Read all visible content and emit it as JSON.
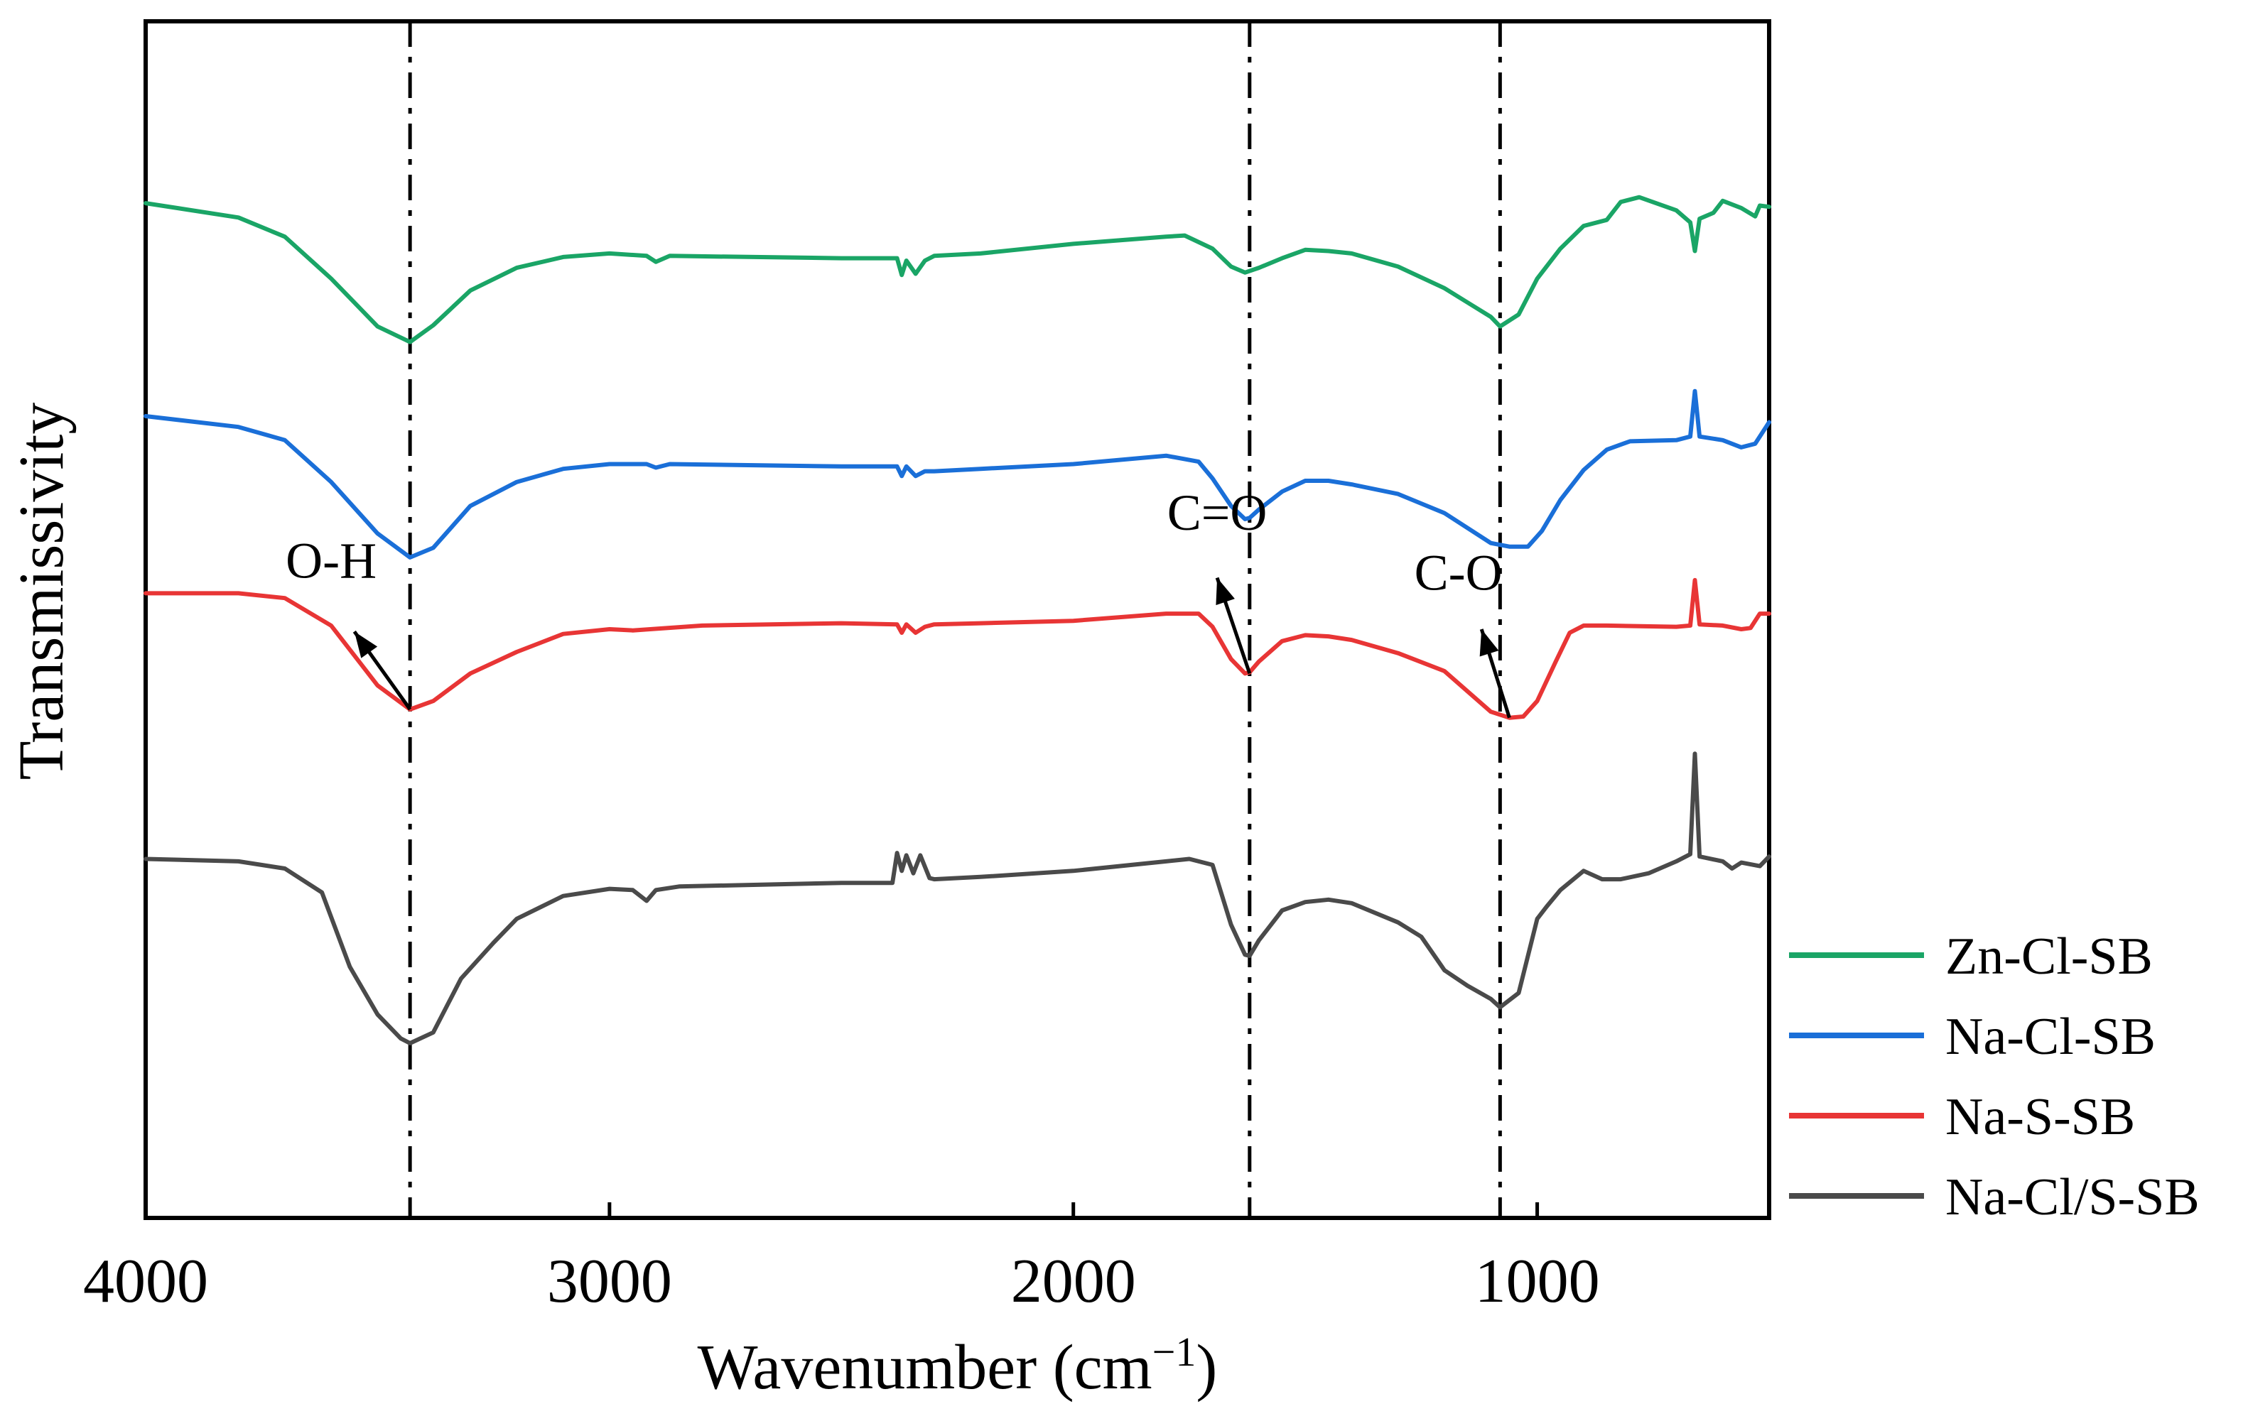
{
  "chart_data": {
    "type": "line",
    "title": "",
    "xlabel": "Wavenumber (cm",
    "xlabel_sup": "−1",
    "xlabel_close": ")",
    "ylabel": "Transmissivity",
    "xlim": [
      4000,
      500
    ],
    "ylim": [
      0,
      100
    ],
    "x_reversed": true,
    "grid": false,
    "yticks_shown": false,
    "xticks": [
      4000,
      3000,
      2000,
      1000
    ],
    "xtick_labels": [
      "4000",
      "3000",
      "2000",
      "1000"
    ],
    "legend_position": "bottom-right, outside plot",
    "reference_lines": [
      {
        "x": 3430,
        "style": "dash-dot"
      },
      {
        "x": 1620,
        "style": "dash-dot"
      },
      {
        "x": 1080,
        "style": "dash-dot"
      }
    ],
    "annotations": [
      {
        "text": "O-H",
        "label_x": 3600,
        "label_y": 53.5,
        "arrow_from": [
          3430,
          42.5
        ],
        "arrow_to": [
          3550,
          49.0
        ]
      },
      {
        "text": "C=O",
        "label_x": 1690,
        "label_y": 57.5,
        "arrow_from": [
          1620,
          45.5
        ],
        "arrow_to": [
          1690,
          53.5
        ]
      },
      {
        "text": "C-O",
        "label_x": 1170,
        "label_y": 52.5,
        "arrow_from": [
          1060,
          41.8
        ],
        "arrow_to": [
          1120,
          49.2
        ]
      }
    ],
    "series": [
      {
        "name": "Zn-Cl-SB",
        "color": "#1aa566",
        "points": [
          [
            4000,
            84.8
          ],
          [
            3800,
            83.6
          ],
          [
            3700,
            82.0
          ],
          [
            3600,
            78.5
          ],
          [
            3500,
            74.5
          ],
          [
            3430,
            73.2
          ],
          [
            3380,
            74.6
          ],
          [
            3300,
            77.5
          ],
          [
            3200,
            79.4
          ],
          [
            3100,
            80.3
          ],
          [
            3000,
            80.6
          ],
          [
            2920,
            80.4
          ],
          [
            2900,
            79.9
          ],
          [
            2870,
            80.4
          ],
          [
            2500,
            80.2
          ],
          [
            2380,
            80.2
          ],
          [
            2370,
            78.8
          ],
          [
            2360,
            80.0
          ],
          [
            2340,
            78.9
          ],
          [
            2320,
            80.0
          ],
          [
            2300,
            80.4
          ],
          [
            2200,
            80.6
          ],
          [
            2000,
            81.4
          ],
          [
            1800,
            82.0
          ],
          [
            1760,
            82.1
          ],
          [
            1700,
            81.0
          ],
          [
            1660,
            79.5
          ],
          [
            1630,
            79.0
          ],
          [
            1600,
            79.4
          ],
          [
            1550,
            80.2
          ],
          [
            1500,
            80.9
          ],
          [
            1450,
            80.8
          ],
          [
            1400,
            80.6
          ],
          [
            1300,
            79.5
          ],
          [
            1200,
            77.7
          ],
          [
            1150,
            76.5
          ],
          [
            1100,
            75.3
          ],
          [
            1080,
            74.5
          ],
          [
            1040,
            75.5
          ],
          [
            1000,
            78.5
          ],
          [
            950,
            81.0
          ],
          [
            900,
            82.9
          ],
          [
            850,
            83.4
          ],
          [
            820,
            84.9
          ],
          [
            780,
            85.3
          ],
          [
            700,
            84.2
          ],
          [
            670,
            83.2
          ],
          [
            660,
            80.8
          ],
          [
            650,
            83.5
          ],
          [
            620,
            84.0
          ],
          [
            600,
            85.0
          ],
          [
            560,
            84.4
          ],
          [
            530,
            83.7
          ],
          [
            520,
            84.6
          ],
          [
            500,
            84.5
          ]
        ]
      },
      {
        "name": "Na-Cl-SB",
        "color": "#1a6fd8",
        "points": [
          [
            4000,
            67.0
          ],
          [
            3800,
            66.1
          ],
          [
            3700,
            65.0
          ],
          [
            3600,
            61.5
          ],
          [
            3500,
            57.2
          ],
          [
            3430,
            55.2
          ],
          [
            3380,
            56.0
          ],
          [
            3300,
            59.5
          ],
          [
            3200,
            61.5
          ],
          [
            3100,
            62.6
          ],
          [
            3000,
            63.0
          ],
          [
            2920,
            63.0
          ],
          [
            2900,
            62.7
          ],
          [
            2870,
            63.0
          ],
          [
            2500,
            62.8
          ],
          [
            2380,
            62.8
          ],
          [
            2370,
            62.0
          ],
          [
            2360,
            62.8
          ],
          [
            2340,
            62.0
          ],
          [
            2320,
            62.4
          ],
          [
            2300,
            62.4
          ],
          [
            2200,
            62.6
          ],
          [
            2000,
            63.0
          ],
          [
            1800,
            63.7
          ],
          [
            1730,
            63.2
          ],
          [
            1700,
            61.8
          ],
          [
            1660,
            59.5
          ],
          [
            1630,
            58.4
          ],
          [
            1620,
            58.5
          ],
          [
            1600,
            59.2
          ],
          [
            1550,
            60.7
          ],
          [
            1500,
            61.6
          ],
          [
            1450,
            61.6
          ],
          [
            1400,
            61.3
          ],
          [
            1300,
            60.5
          ],
          [
            1200,
            58.9
          ],
          [
            1100,
            56.4
          ],
          [
            1060,
            56.1
          ],
          [
            1020,
            56.1
          ],
          [
            990,
            57.4
          ],
          [
            950,
            60.0
          ],
          [
            900,
            62.5
          ],
          [
            850,
            64.2
          ],
          [
            800,
            64.9
          ],
          [
            700,
            65.0
          ],
          [
            670,
            65.3
          ],
          [
            660,
            69.1
          ],
          [
            650,
            65.3
          ],
          [
            600,
            65.0
          ],
          [
            560,
            64.4
          ],
          [
            530,
            64.7
          ],
          [
            500,
            66.5
          ]
        ]
      },
      {
        "name": "Na-S-SB",
        "color": "#e83535",
        "points": [
          [
            4000,
            52.2
          ],
          [
            3800,
            52.2
          ],
          [
            3700,
            51.8
          ],
          [
            3600,
            49.5
          ],
          [
            3500,
            44.5
          ],
          [
            3430,
            42.5
          ],
          [
            3380,
            43.2
          ],
          [
            3300,
            45.5
          ],
          [
            3200,
            47.3
          ],
          [
            3100,
            48.8
          ],
          [
            3000,
            49.2
          ],
          [
            2950,
            49.1
          ],
          [
            2800,
            49.5
          ],
          [
            2500,
            49.7
          ],
          [
            2380,
            49.6
          ],
          [
            2370,
            48.9
          ],
          [
            2360,
            49.6
          ],
          [
            2340,
            48.9
          ],
          [
            2320,
            49.4
          ],
          [
            2300,
            49.6
          ],
          [
            2200,
            49.7
          ],
          [
            2000,
            49.9
          ],
          [
            1800,
            50.5
          ],
          [
            1730,
            50.5
          ],
          [
            1700,
            49.4
          ],
          [
            1660,
            46.7
          ],
          [
            1630,
            45.5
          ],
          [
            1620,
            45.6
          ],
          [
            1600,
            46.5
          ],
          [
            1550,
            48.2
          ],
          [
            1500,
            48.7
          ],
          [
            1450,
            48.6
          ],
          [
            1400,
            48.3
          ],
          [
            1300,
            47.2
          ],
          [
            1200,
            45.7
          ],
          [
            1100,
            42.3
          ],
          [
            1060,
            41.8
          ],
          [
            1030,
            41.9
          ],
          [
            1000,
            43.2
          ],
          [
            960,
            46.5
          ],
          [
            930,
            48.9
          ],
          [
            900,
            49.5
          ],
          [
            850,
            49.5
          ],
          [
            700,
            49.4
          ],
          [
            670,
            49.5
          ],
          [
            660,
            53.3
          ],
          [
            650,
            49.6
          ],
          [
            600,
            49.5
          ],
          [
            560,
            49.2
          ],
          [
            540,
            49.3
          ],
          [
            520,
            50.5
          ],
          [
            500,
            50.5
          ]
        ]
      },
      {
        "name": "Na-Cl/S-SB",
        "color": "#4a4a4a",
        "points": [
          [
            4000,
            30.0
          ],
          [
            3800,
            29.8
          ],
          [
            3700,
            29.2
          ],
          [
            3620,
            27.2
          ],
          [
            3560,
            21.0
          ],
          [
            3500,
            17.0
          ],
          [
            3450,
            15.0
          ],
          [
            3430,
            14.6
          ],
          [
            3380,
            15.5
          ],
          [
            3320,
            20.0
          ],
          [
            3250,
            23.0
          ],
          [
            3200,
            25.0
          ],
          [
            3100,
            26.9
          ],
          [
            3000,
            27.5
          ],
          [
            2950,
            27.4
          ],
          [
            2920,
            26.5
          ],
          [
            2900,
            27.4
          ],
          [
            2850,
            27.7
          ],
          [
            2500,
            28.0
          ],
          [
            2390,
            28.0
          ],
          [
            2380,
            30.5
          ],
          [
            2370,
            29.0
          ],
          [
            2360,
            30.3
          ],
          [
            2345,
            28.8
          ],
          [
            2330,
            30.3
          ],
          [
            2310,
            28.4
          ],
          [
            2300,
            28.3
          ],
          [
            2200,
            28.5
          ],
          [
            2000,
            29.0
          ],
          [
            1800,
            29.8
          ],
          [
            1750,
            30.0
          ],
          [
            1700,
            29.5
          ],
          [
            1660,
            24.5
          ],
          [
            1630,
            22.0
          ],
          [
            1620,
            21.9
          ],
          [
            1600,
            23.2
          ],
          [
            1550,
            25.7
          ],
          [
            1500,
            26.4
          ],
          [
            1450,
            26.6
          ],
          [
            1400,
            26.3
          ],
          [
            1300,
            24.7
          ],
          [
            1250,
            23.5
          ],
          [
            1200,
            20.7
          ],
          [
            1150,
            19.4
          ],
          [
            1100,
            18.3
          ],
          [
            1080,
            17.6
          ],
          [
            1040,
            18.8
          ],
          [
            1000,
            25.0
          ],
          [
            980,
            26.0
          ],
          [
            950,
            27.4
          ],
          [
            900,
            29.0
          ],
          [
            860,
            28.3
          ],
          [
            820,
            28.3
          ],
          [
            760,
            28.8
          ],
          [
            700,
            29.8
          ],
          [
            670,
            30.4
          ],
          [
            660,
            38.8
          ],
          [
            650,
            30.2
          ],
          [
            600,
            29.8
          ],
          [
            580,
            29.2
          ],
          [
            560,
            29.7
          ],
          [
            520,
            29.4
          ],
          [
            500,
            30.2
          ]
        ]
      }
    ]
  }
}
